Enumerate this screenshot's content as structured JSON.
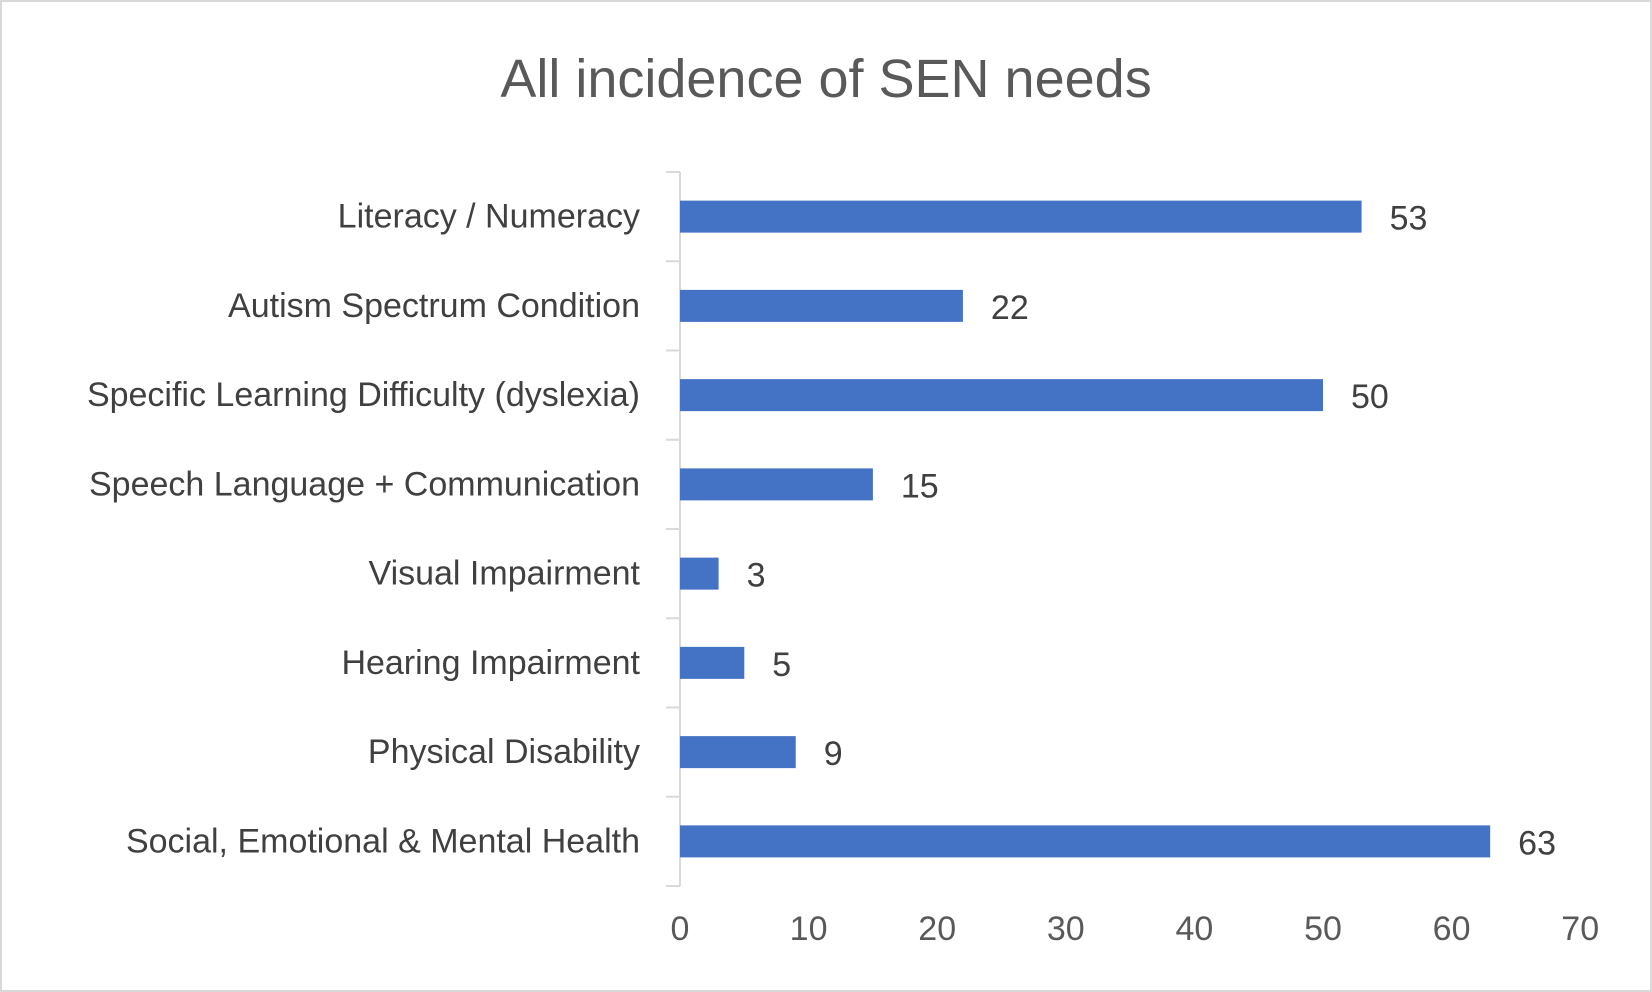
{
  "chart_data": {
    "type": "bar",
    "orientation": "horizontal",
    "title": "All incidence of SEN needs",
    "xlabel": "",
    "ylabel": "",
    "categories": [
      "Literacy / Numeracy",
      "Autism Spectrum Condition",
      "Specific Learning Difficulty (dyslexia)",
      "Speech Language + Communication",
      "Visual Impairment",
      "Hearing Impairment",
      "Physical Disability",
      "Social, Emotional & Mental Health"
    ],
    "values": [
      53,
      22,
      50,
      15,
      3,
      5,
      9,
      63
    ],
    "xlim": [
      0,
      70
    ],
    "xticks": [
      0,
      10,
      20,
      30,
      40,
      50,
      60,
      70
    ],
    "grid": false,
    "legend": "none",
    "bar_color": "#4472c4",
    "data_labels": true
  }
}
